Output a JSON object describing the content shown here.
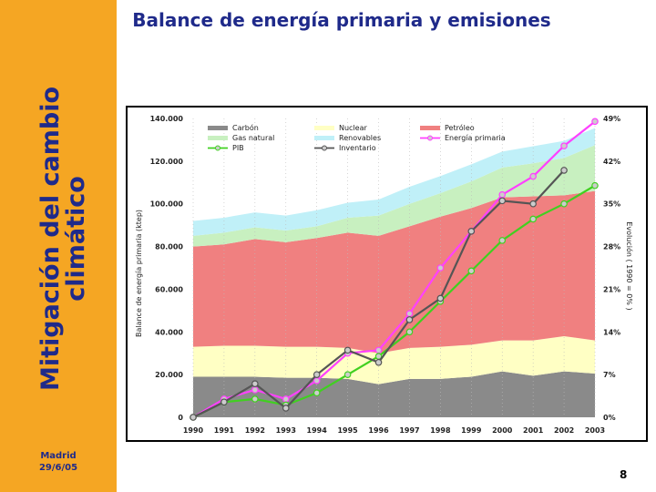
{
  "sidebar": {
    "title": "Mitigación del cambio climático",
    "footer_place": "Madrid",
    "footer_date": "29/6/05"
  },
  "slide": {
    "title": "Balance de energía primaria y emisiones",
    "page_number": "8"
  },
  "colors": {
    "sidebar": "#f5a623",
    "title": "#1f2a8a",
    "carbon": "#8a8a8a",
    "nuclear": "#ffffc4",
    "petroleo": "#f08080",
    "gas": "#c8f0c0",
    "renovables": "#c0f0f8",
    "energia": "#ff40ff",
    "pib": "#40d020",
    "inventario": "#555555"
  },
  "chart_data": {
    "type": "area",
    "title": "Balance de energía primaria y emisiones",
    "x": [
      1990,
      1991,
      1992,
      1993,
      1994,
      1995,
      1996,
      1997,
      1998,
      1999,
      2000,
      2001,
      2002,
      2003
    ],
    "x_tick_labels": [
      "1990",
      "1991",
      "1992",
      "1993",
      "1994",
      "1995",
      "1996",
      "1997",
      "1998",
      "1999",
      "2000",
      "2001",
      "2002",
      "2003"
    ],
    "ylabel": "Balance de energía primaria (ktep)",
    "ylim": [
      0,
      140000
    ],
    "y_tick_labels": [
      "0",
      "20.000",
      "40.000",
      "60.000",
      "80.000",
      "100.000",
      "120.000",
      "140.000"
    ],
    "y2label": "Evolución ( 1990 = 0% )",
    "y2lim": [
      0,
      49
    ],
    "y2_tick_labels": [
      "0%",
      "7%",
      "14%",
      "21%",
      "28%",
      "35%",
      "42%",
      "49%"
    ],
    "stacked_areas": [
      {
        "name": "Carbón",
        "color_key": "carbon",
        "values": [
          19000,
          19000,
          19000,
          18500,
          18500,
          18000,
          15500,
          18000,
          18000,
          19000,
          21500,
          19500,
          21500,
          20500
        ]
      },
      {
        "name": "Nuclear",
        "color_key": "nuclear",
        "values": [
          14000,
          14500,
          14500,
          14500,
          14500,
          14500,
          14500,
          14500,
          15000,
          15000,
          14500,
          16500,
          16500,
          15500
        ]
      },
      {
        "name": "Petróleo",
        "color_key": "petroleo",
        "values": [
          47000,
          47500,
          50000,
          49000,
          51000,
          54000,
          55000,
          57000,
          61000,
          64000,
          67000,
          67500,
          66000,
          70000
        ]
      },
      {
        "name": "Gas natural",
        "color_key": "gas",
        "values": [
          5000,
          5500,
          5500,
          5500,
          5500,
          7000,
          9500,
          10500,
          11000,
          12500,
          14000,
          15500,
          17500,
          21500
        ]
      },
      {
        "name": "Renovables",
        "color_key": "renovables",
        "values": [
          7000,
          7000,
          7000,
          7000,
          7500,
          7000,
          7500,
          8000,
          8000,
          8000,
          7500,
          8000,
          8000,
          8000
        ]
      }
    ],
    "percent_series": [
      {
        "name": "Energía primaria",
        "color_key": "energia",
        "values": [
          0,
          3.0,
          4.5,
          3.0,
          6.0,
          10.5,
          11.0,
          17.0,
          24.5,
          30.5,
          36.5,
          39.5,
          44.5,
          48.5
        ]
      },
      {
        "name": "PIB",
        "color_key": "pib",
        "values": [
          0,
          2.5,
          3.0,
          2.0,
          4.0,
          7.0,
          10.0,
          14.0,
          19.0,
          24.0,
          29.0,
          32.5,
          35.0,
          38.0
        ]
      },
      {
        "name": "Inventario",
        "color_key": "inventario",
        "values": [
          0,
          2.5,
          5.5,
          1.5,
          7.0,
          11.0,
          9.0,
          16.0,
          19.5,
          30.5,
          35.5,
          35.0,
          40.5,
          null
        ]
      }
    ],
    "legend": {
      "placement": "top-left",
      "entries": [
        "Carbón",
        "Nuclear",
        "Petróleo",
        "Gas natural",
        "Renovables",
        "Energía primaria",
        "PIB",
        "Inventario"
      ]
    }
  }
}
